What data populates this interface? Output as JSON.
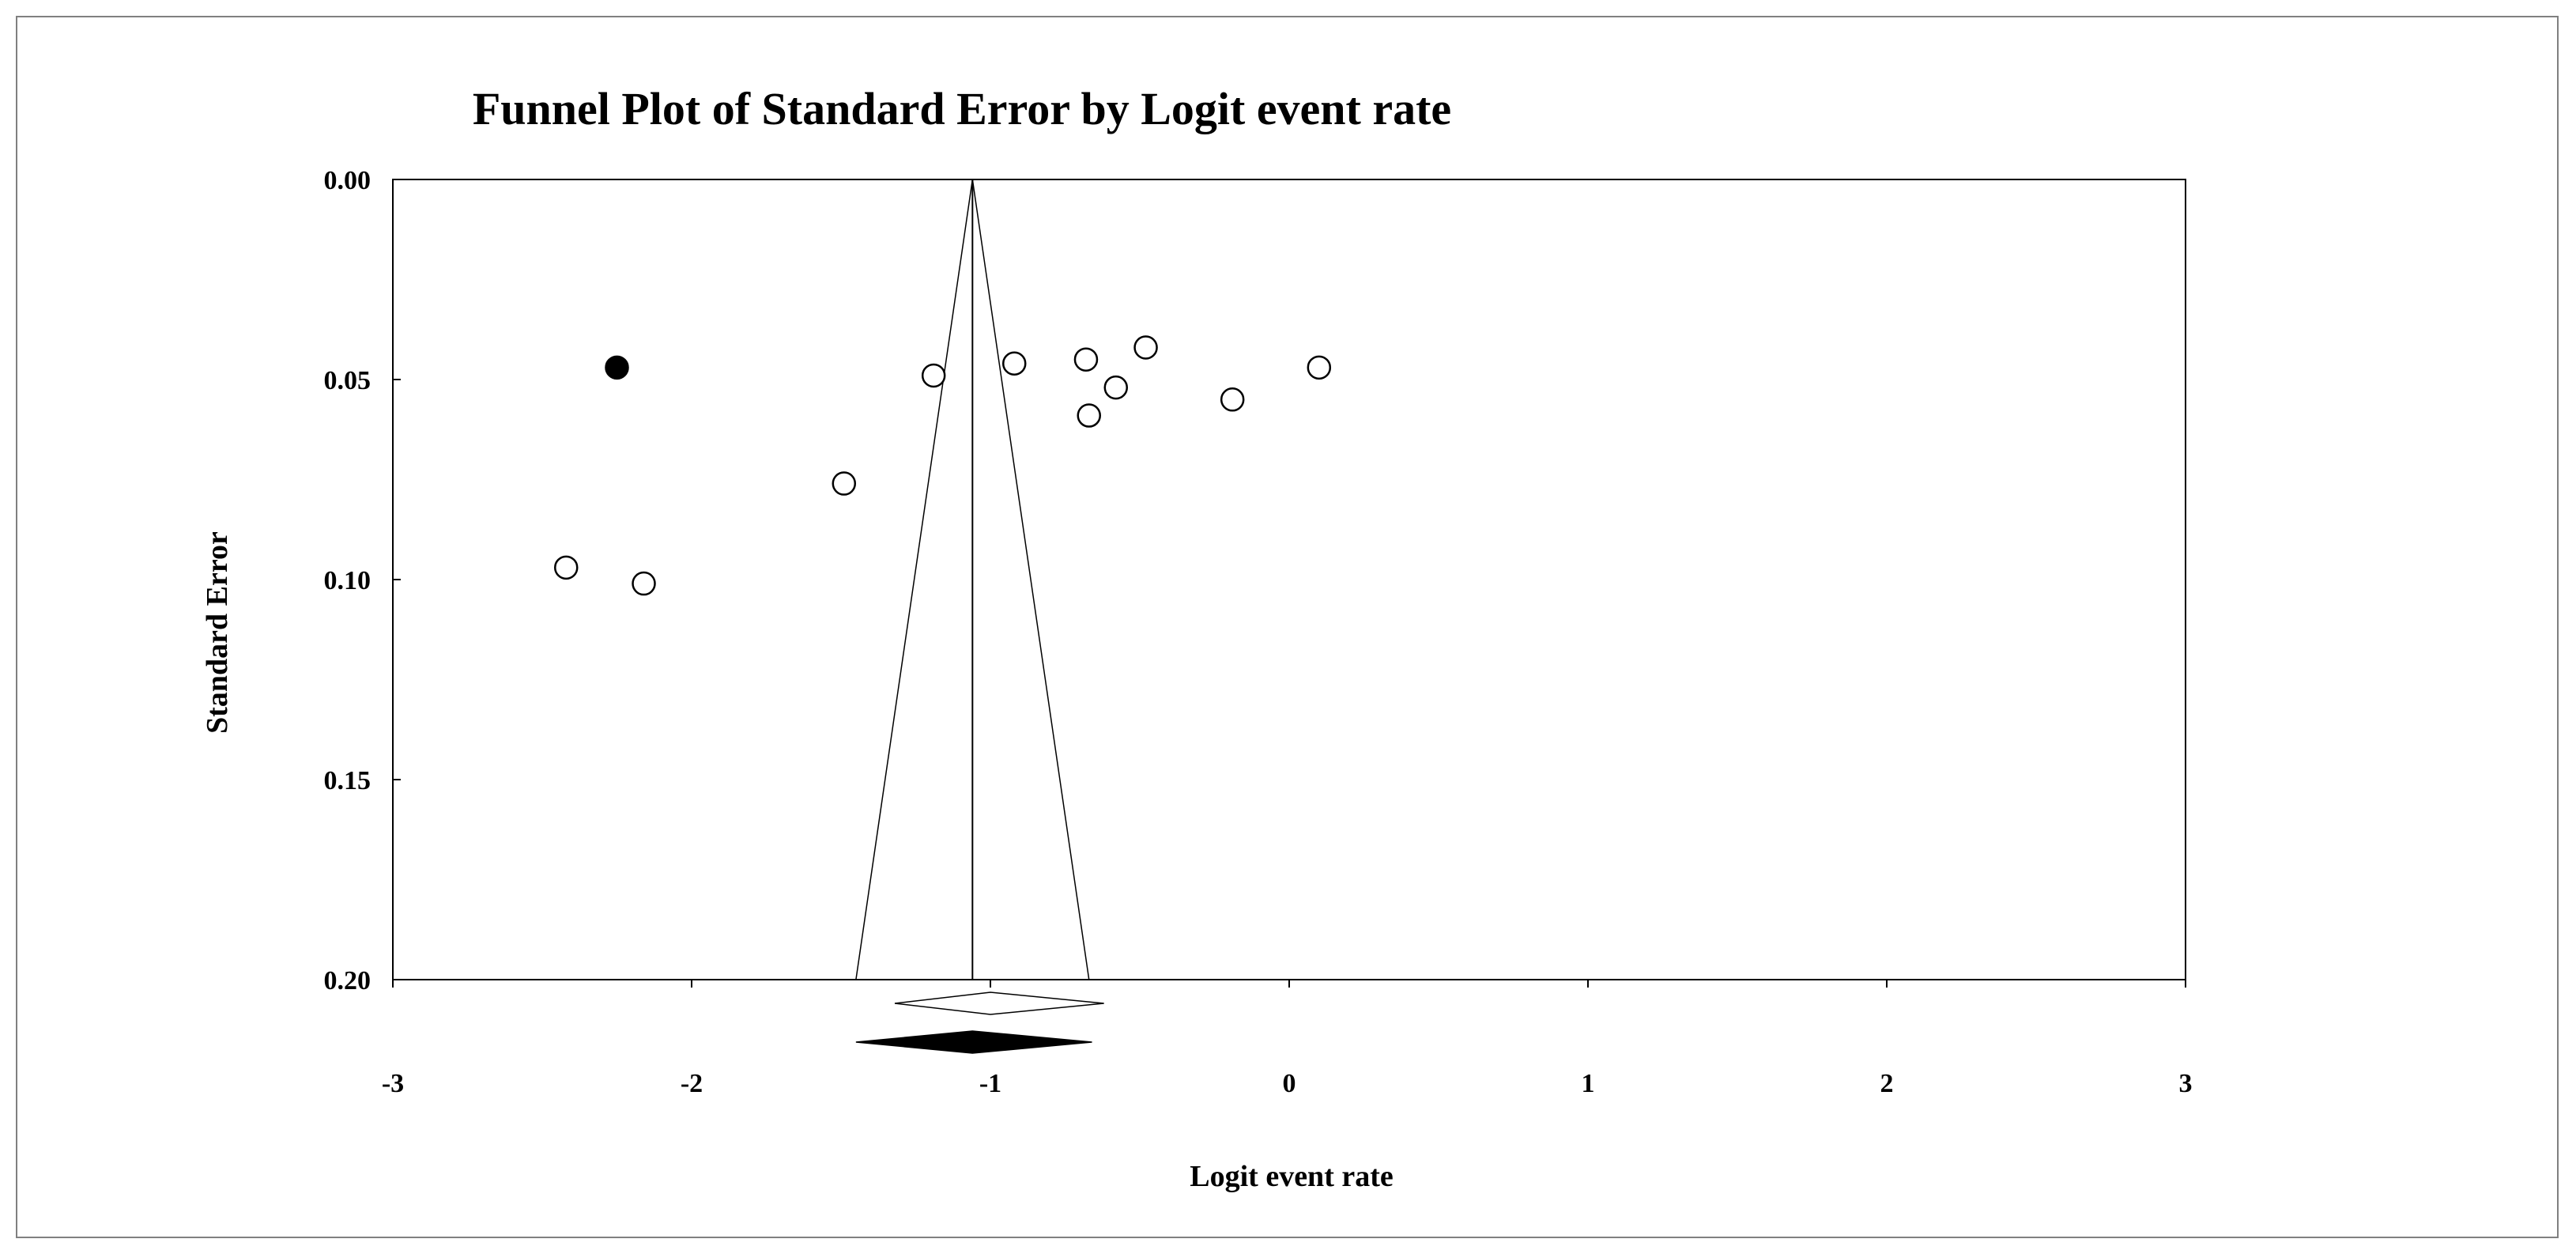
{
  "chart_data": {
    "type": "scatter",
    "title": "Funnel Plot of Standard Error by Logit event rate",
    "xlabel": "Logit event rate",
    "ylabel": "Standard Error",
    "xlim": [
      -3,
      3
    ],
    "ylim": [
      0.0,
      0.2
    ],
    "y_reversed": true,
    "grid": false,
    "legend": "none",
    "x_ticks": [
      "-3",
      "-2",
      "-1",
      "0",
      "1",
      "2",
      "3"
    ],
    "y_ticks": [
      "0.00",
      "0.05",
      "0.10",
      "0.15",
      "0.20"
    ],
    "observed_studies": [
      {
        "x": -2.42,
        "y": 0.097
      },
      {
        "x": -2.16,
        "y": 0.101
      },
      {
        "x": -1.49,
        "y": 0.076
      },
      {
        "x": -1.19,
        "y": 0.049
      },
      {
        "x": -0.92,
        "y": 0.046
      },
      {
        "x": -0.68,
        "y": 0.045
      },
      {
        "x": -0.48,
        "y": 0.042
      },
      {
        "x": -0.58,
        "y": 0.052
      },
      {
        "x": -0.67,
        "y": 0.059
      },
      {
        "x": -0.19,
        "y": 0.055
      },
      {
        "x": 0.1,
        "y": 0.047
      }
    ],
    "imputed_studies": [
      {
        "x": -2.25,
        "y": 0.047
      }
    ],
    "funnel": {
      "center": -1.06,
      "ci_at_max_se": [
        -1.45,
        -0.67
      ]
    },
    "observed_summary": {
      "estimate": -1.0,
      "ci": [
        -1.32,
        -0.62
      ]
    },
    "adjusted_summary": {
      "estimate": -1.06,
      "ci": [
        -1.45,
        -0.66
      ]
    },
    "colors": {
      "line": "#000000",
      "observed_fill": "#ffffff",
      "imputed_fill": "#000000",
      "frame": "#808080"
    }
  }
}
